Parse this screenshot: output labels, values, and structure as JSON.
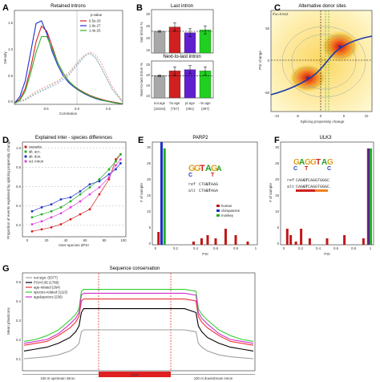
{
  "panels": {
    "A": {
      "label": "A",
      "title": "Retained introns",
      "xlabel": "Correlation",
      "ylabel": "Density",
      "legend_title": "p-value",
      "legend": [
        {
          "name": "6.5e-33",
          "color": "#d62020"
        },
        {
          "name": "1.9e-27",
          "color": "#2030d0"
        },
        {
          "name": "1.4e-25",
          "color": "#30b030"
        }
      ],
      "xticks": [
        "-0.5",
        "0.0",
        "0.5"
      ],
      "yticks": [
        "0.0",
        "0.5",
        "1.0",
        "1.5"
      ]
    },
    "B": {
      "label": "B",
      "top_title": "Last intron",
      "bottom_title": "Next-to-last intron",
      "top_ylabel": "last intron %",
      "bottom_ylabel": "Next-to-last intron %",
      "yticks_top": [
        "30",
        "25",
        "20",
        "15"
      ],
      "yticks_bottom": [
        "25",
        "20",
        "15",
        "10"
      ],
      "categories": [
        "not.age",
        "hs.age",
        "pt.age",
        "rm.age"
      ],
      "counts": [
        "(18184)",
        "(757)",
        "(391)",
        "(397)"
      ],
      "colors": [
        "#a8a8a8",
        "#d02020",
        "#6020d0",
        "#20d020"
      ],
      "top_values": [
        22.5,
        24,
        22,
        23
      ],
      "bottom_values": [
        19,
        21,
        21.5,
        21
      ]
    },
    "C": {
      "label": "C",
      "title": "Alternative donor sites",
      "annotation": "rho=0.512",
      "xlabel": "Splicing propensity change",
      "ylabel": "PSI change",
      "xticks": [
        "-10",
        "-5",
        "0",
        "5",
        "10"
      ],
      "yticks": [
        "-50",
        "0",
        "50"
      ]
    },
    "D": {
      "label": "D",
      "title": "Explained inter - species differences",
      "xlabel": "Inter-species dPSI",
      "ylabel": "Proportion of events explained by splicing propensity change",
      "legend": [
        {
          "name": "cassette",
          "color": "#d02020"
        },
        {
          "name": "alt. acc.",
          "color": "#20b020"
        },
        {
          "name": "alt. don.",
          "color": "#2030d0"
        },
        {
          "name": "ret. intron",
          "color": "#e040e0"
        }
      ],
      "xticks": [
        "0",
        "20",
        "40",
        "60",
        "80",
        "100"
      ],
      "yticks": [
        "0.2",
        "0.4",
        "0.6",
        "0.8",
        "1.0"
      ]
    },
    "E": {
      "label": "E",
      "title": "PARP2",
      "xlabel": "PSI",
      "ylabel": "# of sample",
      "xticks": [
        "0",
        "0.2",
        "0.4",
        "0.6",
        "0.8",
        "1"
      ],
      "yticks": [
        "0",
        "5",
        "10",
        "15",
        "20",
        "25",
        "30"
      ],
      "legend": [
        {
          "name": "human",
          "color": "#c01818"
        },
        {
          "name": "chimpanzee",
          "color": "#2030c8"
        },
        {
          "name": "monkey",
          "color": "#20b020"
        }
      ],
      "ref_label": "ref",
      "alt_label": "alt",
      "ref_pre": "CTG",
      "ref_bold": "GT",
      "ref_post": "AAG",
      "alt_pre": "CTG",
      "alt_bold": "GT",
      "alt_post": "AGA"
    },
    "F": {
      "label": "F",
      "title": "ULK3",
      "xlabel": "PSI",
      "ylabel": "# of sample",
      "xticks": [
        "0",
        "0.2",
        "0.4",
        "0.6",
        "0.8",
        "1"
      ],
      "yticks": [
        "0",
        "5",
        "10",
        "15",
        "20",
        "25",
        "30"
      ],
      "ref_label": "ref",
      "alt_label": "alt",
      "ref_pre": "CAG",
      "ref_bold": "GT",
      "ref_post": "CAGGTGGGC",
      "alt_pre": "CAG",
      "alt_bold": "GT",
      "alt_post": "CAGGTGGGC"
    },
    "G": {
      "label": "G",
      "title": "Sequence conservation",
      "ylabel": "Mean phastcons",
      "legend": [
        {
          "name": "not sign. (5377)",
          "color": "#a0a0a0"
        },
        {
          "name": "PSI>0.95 (1786)",
          "color": "#000000"
        },
        {
          "name": "age-related (264)",
          "color": "#f03030"
        },
        {
          "name": "species-related (1113)",
          "color": "#30d030"
        },
        {
          "name": "age&species (230)",
          "color": "#d030d0"
        }
      ],
      "yticks": [
        "0.1",
        "0.2",
        "0.3",
        "0.4",
        "0.5"
      ],
      "exon_label": "Exon",
      "left_label": "100 nt upstream intron",
      "right_label": "100 nt downstream intron"
    }
  },
  "chart_data": [
    {
      "type": "line",
      "title": "Retained introns",
      "xlabel": "Correlation",
      "ylabel": "Density",
      "xlim": [
        -1,
        1
      ],
      "ylim": [
        0,
        1.8
      ],
      "series": [
        {
          "name": "6.5e-33",
          "x": [
            -1.0,
            -0.9,
            -0.8,
            -0.7,
            -0.6,
            -0.5,
            -0.4,
            -0.3,
            -0.2,
            -0.1,
            0.0,
            0.1,
            0.2,
            0.3,
            0.4,
            0.5,
            0.6,
            0.7,
            0.8,
            0.9,
            1.0
          ],
          "y": [
            0.02,
            0.1,
            0.3,
            0.7,
            1.2,
            1.5,
            1.4,
            1.1,
            0.8,
            0.6,
            0.45,
            0.35,
            0.28,
            0.22,
            0.17,
            0.13,
            0.1,
            0.07,
            0.05,
            0.03,
            0.01
          ]
        },
        {
          "name": "1.9e-27",
          "x": [
            -1.0,
            -0.9,
            -0.8,
            -0.7,
            -0.6,
            -0.5,
            -0.4,
            -0.3,
            -0.2,
            -0.1,
            0.0,
            0.1,
            0.2,
            0.3,
            0.4,
            0.5,
            0.6,
            0.7,
            0.8,
            0.9,
            1.0
          ],
          "y": [
            0.02,
            0.15,
            0.45,
            1.0,
            1.55,
            1.6,
            1.35,
            1.0,
            0.75,
            0.55,
            0.42,
            0.33,
            0.26,
            0.2,
            0.15,
            0.11,
            0.08,
            0.06,
            0.04,
            0.02,
            0.01
          ]
        },
        {
          "name": "1.4e-25",
          "x": [
            -1.0,
            -0.9,
            -0.8,
            -0.7,
            -0.6,
            -0.5,
            -0.4,
            -0.3,
            -0.2,
            -0.1,
            0.0,
            0.1,
            0.2,
            0.3,
            0.4,
            0.5,
            0.6,
            0.7,
            0.8,
            0.9,
            1.0
          ],
          "y": [
            0.01,
            0.08,
            0.25,
            0.6,
            1.0,
            1.3,
            1.3,
            1.05,
            0.8,
            0.6,
            0.45,
            0.35,
            0.27,
            0.21,
            0.16,
            0.12,
            0.09,
            0.06,
            0.04,
            0.02,
            0.01
          ]
        },
        {
          "x": [
            -1.0,
            -0.8,
            -0.6,
            -0.4,
            -0.2,
            0.0,
            0.2,
            0.3,
            0.4,
            0.5,
            0.6,
            0.8,
            1.0
          ],
          "y": [
            0.02,
            0.1,
            0.25,
            0.35,
            0.45,
            0.6,
            0.85,
            0.95,
            1.0,
            0.95,
            0.8,
            0.35,
            0.05
          ]
        },
        {
          "x": [
            -1.0,
            -0.8,
            -0.6,
            -0.4,
            -0.2,
            0.0,
            0.2,
            0.3,
            0.4,
            0.5,
            0.6,
            0.8,
            1.0
          ],
          "y": [
            0.02,
            0.08,
            0.2,
            0.3,
            0.4,
            0.55,
            0.8,
            0.92,
            0.98,
            0.9,
            0.72,
            0.3,
            0.04
          ]
        },
        {
          "x": [
            -1.0,
            -0.8,
            -0.6,
            -0.4,
            -0.2,
            0.0,
            0.2,
            0.3,
            0.4,
            0.5,
            0.6,
            0.8,
            1.0
          ],
          "y": [
            0.02,
            0.09,
            0.22,
            0.32,
            0.43,
            0.58,
            0.82,
            0.93,
            0.97,
            0.88,
            0.7,
            0.3,
            0.04
          ]
        }
      ]
    },
    {
      "type": "bar",
      "title": "Last intron",
      "ylabel": "last intron %",
      "categories": [
        "not.age",
        "hs.age",
        "pt.age",
        "rm.age"
      ],
      "values": [
        22.5,
        24,
        22,
        23
      ],
      "ylim": [
        15,
        30
      ]
    },
    {
      "type": "bar",
      "title": "Next-to-last intron",
      "ylabel": "Next-to-last intron %",
      "categories": [
        "not.age",
        "hs.age",
        "pt.age",
        "rm.age"
      ],
      "values": [
        19,
        21,
        21.5,
        21
      ],
      "ylim": [
        10,
        25
      ]
    },
    {
      "type": "line",
      "title": "Sequence conservation",
      "ylabel": "Mean phastcons",
      "ylim": [
        0.05,
        0.55
      ],
      "x": [
        0,
        10,
        20,
        30,
        40,
        45,
        48,
        50,
        52,
        60,
        70,
        80,
        90,
        100,
        110,
        120,
        130,
        140,
        150,
        152,
        155,
        160,
        170,
        180,
        190,
        200
      ],
      "series": [
        {
          "name": "not sign. (5377)",
          "values": [
            0.1,
            0.105,
            0.11,
            0.12,
            0.14,
            0.16,
            0.18,
            0.24,
            0.25,
            0.25,
            0.25,
            0.25,
            0.25,
            0.25,
            0.25,
            0.25,
            0.25,
            0.25,
            0.24,
            0.18,
            0.16,
            0.14,
            0.12,
            0.11,
            0.105,
            0.1
          ]
        },
        {
          "name": "PSI>0.95 (1786)",
          "values": [
            0.14,
            0.15,
            0.16,
            0.18,
            0.21,
            0.24,
            0.27,
            0.34,
            0.36,
            0.36,
            0.36,
            0.36,
            0.36,
            0.36,
            0.36,
            0.36,
            0.36,
            0.36,
            0.34,
            0.27,
            0.24,
            0.21,
            0.18,
            0.16,
            0.15,
            0.14
          ]
        },
        {
          "name": "age-related (264)",
          "values": [
            0.17,
            0.18,
            0.19,
            0.22,
            0.26,
            0.29,
            0.32,
            0.4,
            0.41,
            0.41,
            0.41,
            0.41,
            0.41,
            0.41,
            0.41,
            0.41,
            0.41,
            0.41,
            0.4,
            0.32,
            0.29,
            0.26,
            0.22,
            0.19,
            0.18,
            0.17
          ]
        },
        {
          "name": "species-related (1113)",
          "values": [
            0.19,
            0.2,
            0.22,
            0.25,
            0.3,
            0.33,
            0.36,
            0.45,
            0.46,
            0.46,
            0.46,
            0.46,
            0.46,
            0.46,
            0.46,
            0.46,
            0.46,
            0.46,
            0.45,
            0.36,
            0.33,
            0.3,
            0.25,
            0.22,
            0.2,
            0.19
          ]
        },
        {
          "name": "age&species (230)",
          "values": [
            0.18,
            0.19,
            0.2,
            0.23,
            0.28,
            0.31,
            0.34,
            0.43,
            0.44,
            0.44,
            0.44,
            0.44,
            0.44,
            0.44,
            0.44,
            0.44,
            0.44,
            0.44,
            0.43,
            0.34,
            0.31,
            0.28,
            0.23,
            0.2,
            0.19,
            0.18
          ]
        }
      ]
    }
  ]
}
